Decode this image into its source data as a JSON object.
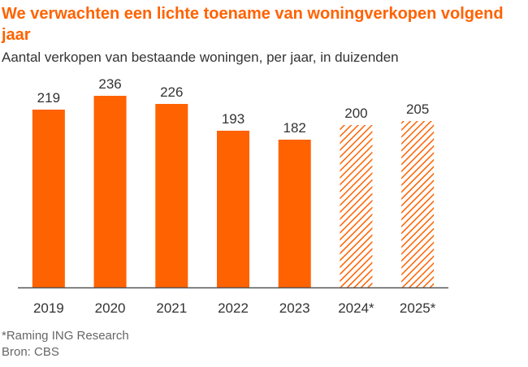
{
  "header": {
    "title": "We verwachten een lichte toename van woningverkopen volgend jaar",
    "subtitle": "Aantal verkopen van bestaande woningen, per jaar, in duizenden"
  },
  "colors": {
    "title": "#ff6200",
    "bar": "#ff6200",
    "forecast_hatch": "#ff6200",
    "axis": "#555555",
    "text": "#333333",
    "note": "#666666"
  },
  "chart_data": {
    "type": "bar",
    "title": "",
    "xlabel": "",
    "ylabel": "",
    "categories": [
      "2019",
      "2020",
      "2021",
      "2022",
      "2023",
      "2024*",
      "2025*"
    ],
    "values": [
      219,
      236,
      226,
      193,
      182,
      200,
      205
    ],
    "value_labels": [
      "219",
      "236",
      "226",
      "193",
      "182",
      "200",
      "205"
    ],
    "forecast": [
      false,
      false,
      false,
      false,
      false,
      true,
      true
    ],
    "ylim": [
      0,
      270
    ],
    "grid": false,
    "legend": "none"
  },
  "notes": {
    "forecast_note": "*Raming ING Research",
    "source": "Bron: CBS"
  }
}
